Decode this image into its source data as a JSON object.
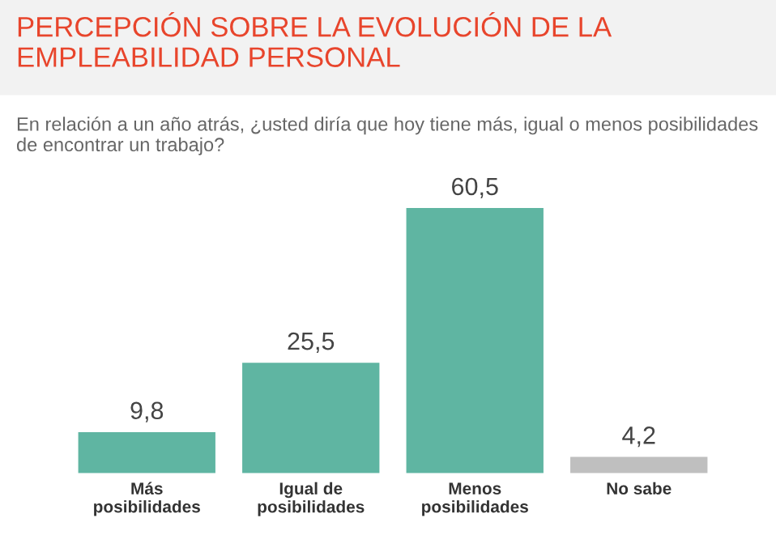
{
  "chart_data": {
    "type": "bar",
    "title": "PERCEPCIÓN SOBRE LA EVOLUCIÓN DE LA EMPLEABILIDAD PERSONAL",
    "subtitle": "En relación a un año atrás, ¿usted diría que hoy tiene más, igual o menos posibilidades de encontrar un trabajo?",
    "categories": [
      "Más posibilidades",
      "Igual de posibilidades",
      "Menos posibilidades",
      "No sabe"
    ],
    "values": [
      9.8,
      25.5,
      60.5,
      4.2
    ],
    "colors": [
      "#5fb5a2",
      "#5fb5a2",
      "#5fb5a2",
      "#bfbfbf"
    ],
    "value_labels": [
      "9,8",
      "25,5",
      "60,5",
      "4,2"
    ],
    "grid": false,
    "legend": false
  }
}
